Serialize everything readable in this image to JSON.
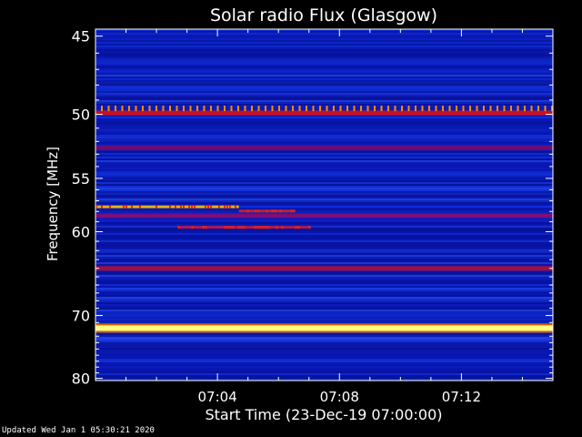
{
  "chart_data": {
    "type": "heatmap",
    "title": "Solar radio Flux (Glasgow)",
    "xlabel": "Start Time (23-Dec-19 07:00:00)",
    "ylabel": "Frequency [MHz]",
    "x_range_minutes": [
      0,
      15
    ],
    "x_ticks": [
      {
        "value": 4,
        "label": "07:04"
      },
      {
        "value": 8,
        "label": "07:08"
      },
      {
        "value": 12,
        "label": "07:12"
      }
    ],
    "y_range_mhz": [
      44.6,
      80.4
    ],
    "y_scale": "reciprocal",
    "y_ticks": [
      45,
      50,
      55,
      60,
      70,
      80
    ],
    "background_color": "#0a14a0",
    "emission_lines": [
      {
        "frequency_mhz": 49.9,
        "intensity": "high",
        "color": "#e01010"
      },
      {
        "frequency_mhz": 52.5,
        "intensity": "medium",
        "color": "#7a0a6a"
      },
      {
        "frequency_mhz": 58.4,
        "intensity": "medium",
        "color": "#8a1070"
      },
      {
        "frequency_mhz": 64.0,
        "intensity": "medium",
        "color": "#b01030"
      },
      {
        "frequency_mhz": 71.8,
        "intensity": "very high",
        "color": "#ffff80"
      }
    ],
    "bursts": [
      {
        "frequency_mhz": 57.6,
        "start_min": 0.0,
        "end_min": 4.7,
        "color": "#ffcc00"
      },
      {
        "frequency_mhz": 58.0,
        "start_min": 4.7,
        "end_min": 6.5,
        "color": "#e02020"
      },
      {
        "frequency_mhz": 59.6,
        "start_min": 2.7,
        "end_min": 7.0,
        "color": "#d01040"
      }
    ]
  },
  "footer_text": "Updated Wed Jan  1 05:30:21 2020"
}
